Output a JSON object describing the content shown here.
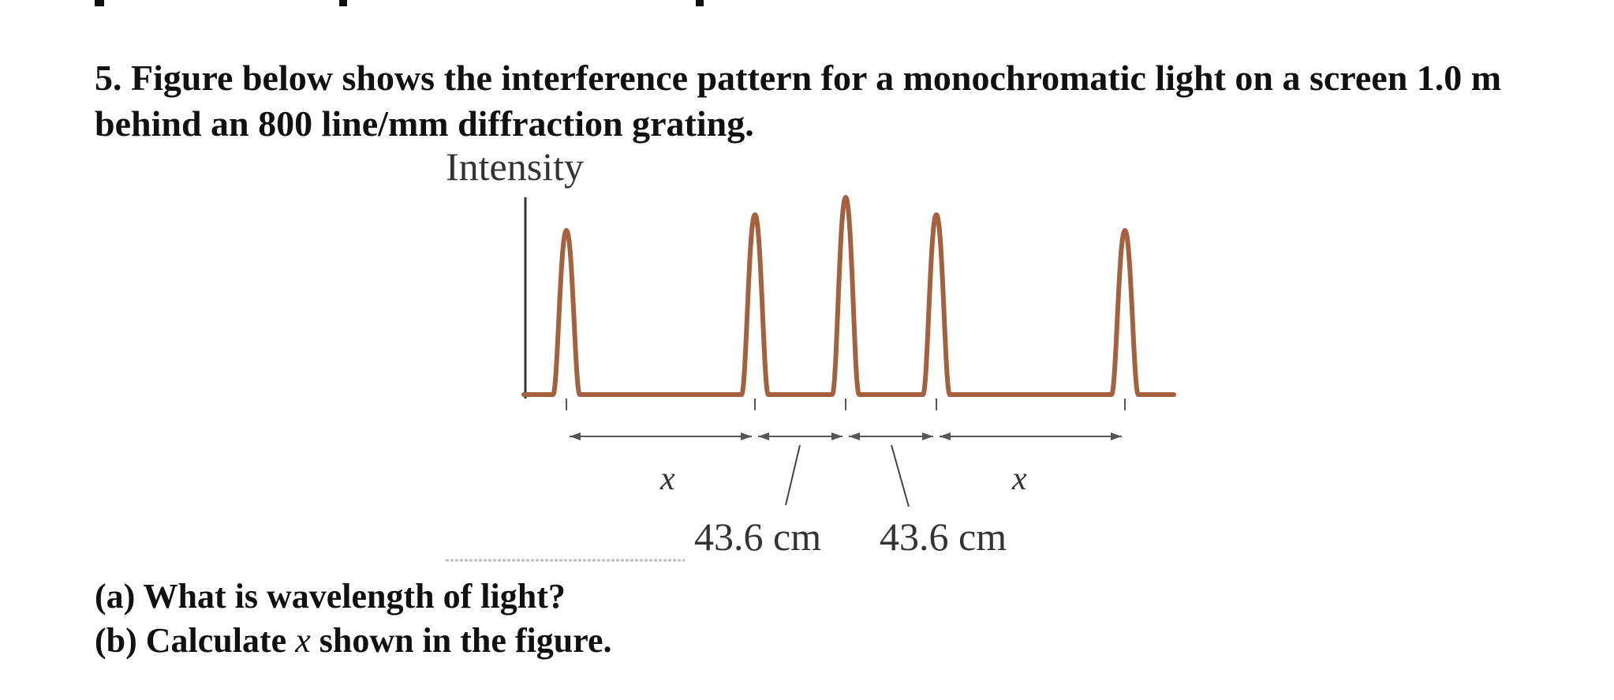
{
  "question": {
    "number": "5.",
    "text": "Figure below shows the interference pattern for a monochromatic light on a screen 1.0 m behind an 800 line/mm diffraction grating."
  },
  "figure": {
    "y_axis_label": "Intensity",
    "x_label_left": "x",
    "x_label_right": "x",
    "spacing_label_left": "43.6 cm",
    "spacing_label_right": "43.6 cm",
    "peak_color": "#a5603f",
    "arrow_color": "#555555"
  },
  "parts": [
    {
      "label": "(a)",
      "text": "What is wavelength of light?"
    },
    {
      "label": "(b)",
      "text_before": "Calculate",
      "variable": "x",
      "text_after": "shown in the figure."
    }
  ]
}
